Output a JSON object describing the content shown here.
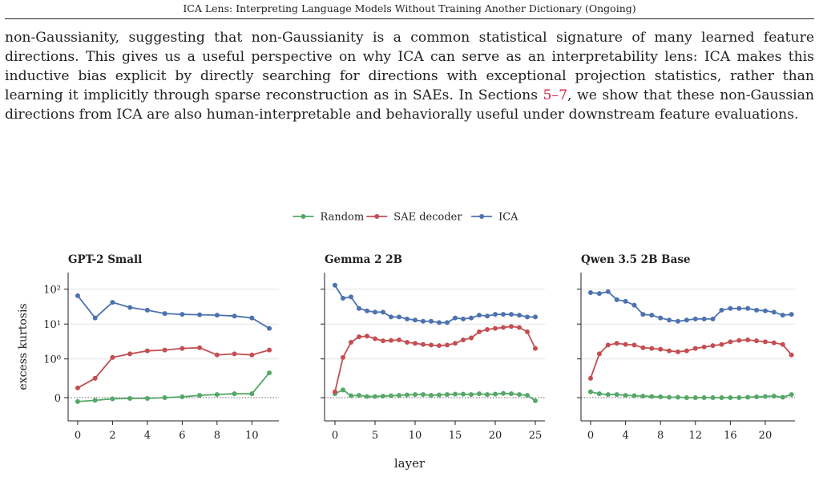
{
  "header": {
    "title": "ICA Lens: Interpreting Language Models Without Training Another Dictionary (Ongoing)"
  },
  "body": {
    "text_before": "non-Gaussianity, suggesting that non-Gaussianity is a common statistical signature of many learned feature directions. This gives us a useful perspective on why ICA can serve as an interpretability lens: ICA makes this inductive bias explicit by directly searching for directions with exceptional projection statistics, rather than learning it implicitly through sparse reconstruction as in SAEs. In Sections ",
    "link": "5–7",
    "text_after": ", we show that these non-Gaussian directions from ICA are also human-interpretable and behaviorally useful under downstream feature evaluations."
  },
  "figure": {
    "xlabel": "layer",
    "legend_position": "top"
  },
  "chart_data": [
    {
      "type": "line",
      "title": "GPT-2 Small",
      "ylabel": "excess kurtosis",
      "x": [
        0,
        1,
        2,
        3,
        4,
        5,
        6,
        7,
        8,
        9,
        10,
        11
      ],
      "series": [
        {
          "name": "Random",
          "color": "#55a868",
          "values": [
            -0.1,
            -0.07,
            -0.03,
            -0.02,
            -0.02,
            0,
            0.02,
            0.06,
            0.08,
            0.1,
            0.1,
            0.64
          ]
        },
        {
          "name": "SAE decoder",
          "color": "#c44e52",
          "values": [
            0.25,
            0.5,
            1.1,
            1.4,
            1.7,
            1.8,
            2.0,
            2.1,
            1.3,
            1.4,
            1.3,
            1.8
          ]
        },
        {
          "name": "ICA",
          "color": "#4c72b0",
          "values": [
            65,
            15,
            42,
            30,
            25,
            20,
            19,
            18.5,
            18,
            17,
            15,
            7.5
          ]
        }
      ],
      "xlim": [
        -0.55,
        11.55
      ],
      "xticks": [
        0,
        2,
        4,
        6,
        8,
        10
      ],
      "ylim": [
        -0.6,
        300
      ],
      "yscale": "symlog",
      "linthresh": 1,
      "yticks": [
        0,
        {
          "value": 1,
          "label": "10⁰"
        },
        {
          "value": 10,
          "label": "10¹"
        },
        {
          "value": 100,
          "label": "10²"
        }
      ],
      "grid": true
    },
    {
      "type": "line",
      "title": "Gemma 2 2B",
      "x": [
        0,
        1,
        2,
        3,
        4,
        5,
        6,
        7,
        8,
        9,
        10,
        11,
        12,
        13,
        14,
        15,
        16,
        17,
        18,
        19,
        20,
        21,
        22,
        23,
        24,
        25
      ],
      "series": [
        {
          "name": "Random",
          "color": "#55a868",
          "values": [
            0.1,
            0.2,
            0.05,
            0.06,
            0.03,
            0.03,
            0.04,
            0.05,
            0.06,
            0.07,
            0.08,
            0.08,
            0.06,
            0.07,
            0.08,
            0.09,
            0.09,
            0.08,
            0.1,
            0.08,
            0.09,
            0.11,
            0.1,
            0.08,
            0.06,
            -0.08
          ]
        },
        {
          "name": "SAE decoder",
          "color": "#c44e52",
          "values": [
            0.15,
            1.1,
            3,
            4.3,
            4.5,
            3.8,
            3.3,
            3.4,
            3.5,
            3.0,
            2.8,
            2.6,
            2.5,
            2.4,
            2.5,
            2.8,
            3.5,
            4,
            6,
            7,
            7.5,
            8,
            8.5,
            8,
            6,
            2
          ]
        },
        {
          "name": "ICA",
          "color": "#4c72b0",
          "values": [
            130,
            55,
            60,
            28,
            24,
            22,
            22,
            16,
            16,
            14,
            13,
            12,
            12,
            11,
            11,
            15,
            14,
            15,
            18,
            17,
            19,
            19,
            19,
            18,
            16,
            16
          ]
        }
      ],
      "xlim": [
        -1.3,
        26.2
      ],
      "xticks": [
        0,
        5,
        10,
        15,
        20,
        25
      ],
      "ylim": [
        -0.6,
        300
      ],
      "yscale": "symlog",
      "linthresh": 1,
      "yticks": [
        0,
        1,
        10,
        100
      ],
      "grid": true
    },
    {
      "type": "line",
      "title": "Qwen 3.5 2B Base",
      "x": [
        0,
        1,
        2,
        3,
        4,
        5,
        6,
        7,
        8,
        9,
        10,
        11,
        12,
        13,
        14,
        15,
        16,
        17,
        18,
        19,
        20,
        21,
        22,
        23
      ],
      "series": [
        {
          "name": "Random",
          "color": "#55a868",
          "values": [
            0.15,
            0.1,
            0.08,
            0.08,
            0.06,
            0.05,
            0.04,
            0.03,
            0.02,
            0.01,
            0.01,
            0,
            0,
            0,
            0,
            0,
            0,
            0,
            0.01,
            0.02,
            0.03,
            0.04,
            0.01,
            0.08
          ]
        },
        {
          "name": "SAE decoder",
          "color": "#c44e52",
          "values": [
            0.5,
            1.4,
            2.5,
            2.8,
            2.6,
            2.5,
            2.1,
            2.0,
            1.9,
            1.7,
            1.6,
            1.7,
            2.0,
            2.2,
            2.4,
            2.6,
            3.1,
            3.4,
            3.5,
            3.3,
            3.1,
            2.9,
            2.6,
            1.3
          ]
        },
        {
          "name": "ICA",
          "color": "#4c72b0",
          "values": [
            80,
            75,
            85,
            50,
            45,
            35,
            19,
            18,
            15,
            13,
            12,
            13,
            14,
            14,
            14,
            25,
            28,
            28,
            28,
            25,
            24,
            22,
            18,
            19
          ]
        }
      ],
      "xlim": [
        -1.1,
        23.4
      ],
      "xticks": [
        0,
        4,
        8,
        12,
        16,
        20
      ],
      "ylim": [
        -0.6,
        300
      ],
      "yscale": "symlog",
      "linthresh": 1,
      "yticks": [
        0,
        1,
        10,
        100
      ],
      "grid": true
    }
  ]
}
